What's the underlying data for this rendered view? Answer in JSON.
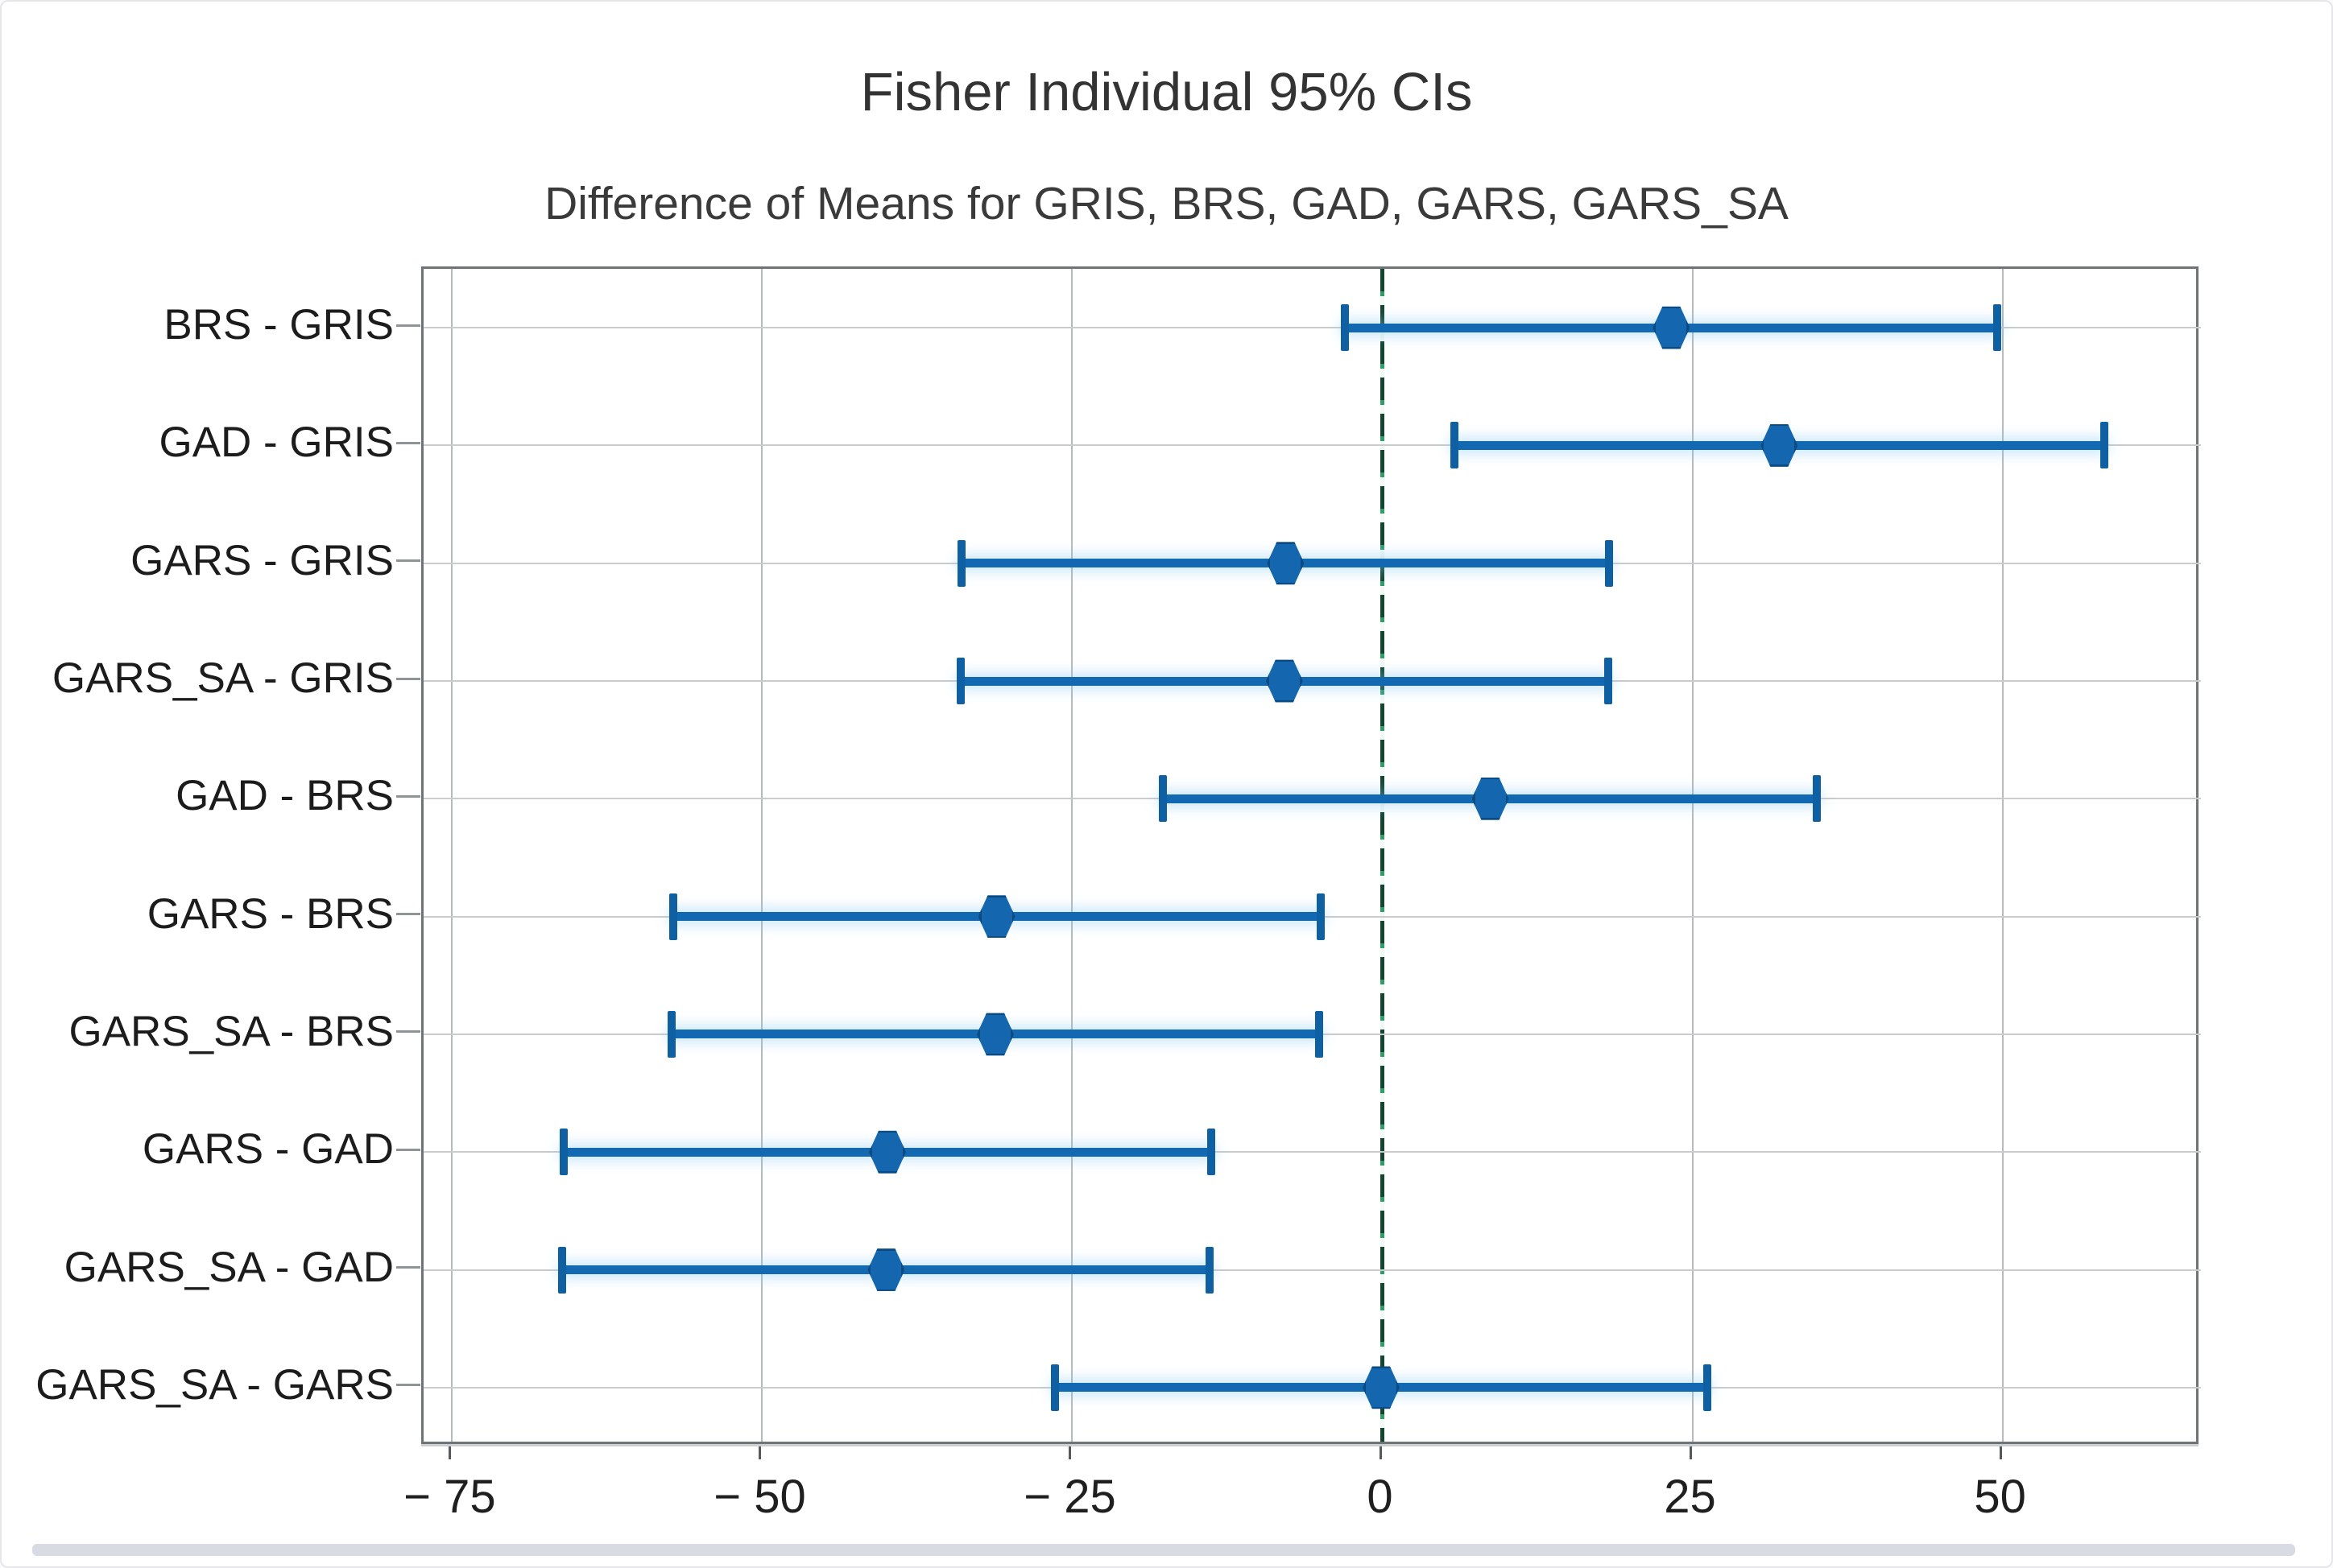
{
  "chart_data": {
    "type": "interval",
    "title": "Fisher Individual 95% CIs",
    "subtitle": "Difference of Means for GRIS, BRS, GAD, GARS, GARS_SA",
    "xlabel": "",
    "ylabel": "",
    "xlim": [
      -77.3,
      66.0
    ],
    "grid": true,
    "legend_position": "none",
    "x_ticks": [
      -75,
      -50,
      -25,
      0,
      25,
      50
    ],
    "x_tick_labels": [
      "− 75",
      "− 50",
      "− 25",
      "0",
      "25",
      "50"
    ],
    "reference_line": {
      "x": 0,
      "style": "dashed",
      "color_green": "#2f9e63",
      "color_dark": "#12462f"
    },
    "categories": [
      "BRS - GRIS",
      "GAD - GRIS",
      "GARS - GRIS",
      "GARS_SA - GRIS",
      "GAD - BRS",
      "GARS - BRS",
      "GARS_SA - BRS",
      "GARS - GAD",
      "GARS_SA - GAD",
      "GARS_SA - GARS"
    ],
    "rows": [
      {
        "label": "BRS - GRIS",
        "lower": -3.0,
        "center": 23.3,
        "upper": 49.6
      },
      {
        "label": "GAD - GRIS",
        "lower": 5.8,
        "center": 32.0,
        "upper": 58.2
      },
      {
        "label": "GARS - GRIS",
        "lower": -33.9,
        "center": -7.8,
        "upper": 18.3
      },
      {
        "label": "GARS_SA - GRIS",
        "lower": -34.0,
        "center": -7.9,
        "upper": 18.2
      },
      {
        "label": "GAD - BRS",
        "lower": -17.7,
        "center": 8.7,
        "upper": 35.0
      },
      {
        "label": "GARS - BRS",
        "lower": -57.2,
        "center": -31.1,
        "upper": -5.0
      },
      {
        "label": "GARS_SA - BRS",
        "lower": -57.3,
        "center": -31.2,
        "upper": -5.1
      },
      {
        "label": "GARS - GAD",
        "lower": -66.0,
        "center": -39.9,
        "upper": -13.8
      },
      {
        "label": "GARS_SA - GAD",
        "lower": -66.1,
        "center": -40.0,
        "upper": -13.9
      },
      {
        "label": "GARS_SA - GARS",
        "lower": -26.4,
        "center": -0.1,
        "upper": 26.2
      }
    ],
    "colors": {
      "interval_bar": "#1268b1",
      "interval_cap": "#0f5fa3",
      "marker_fill": "#1467af",
      "marker_edge": "#0b4a82",
      "gridline": "#b7babc",
      "plot_border": "#6e7478",
      "text": "#1c1c1c"
    }
  }
}
